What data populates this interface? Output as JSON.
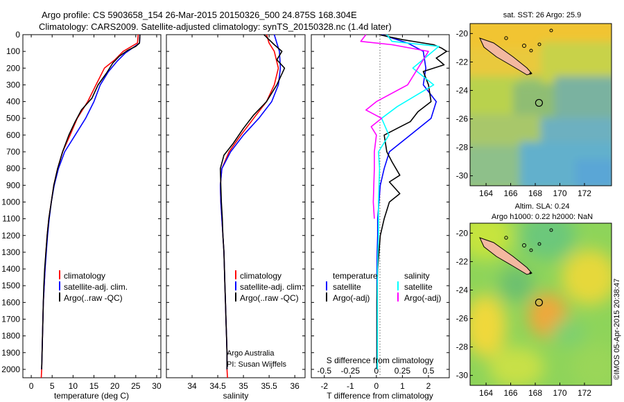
{
  "header": {
    "line1": "Argo profile: CS 5903658_154 26-Mar-2015 20150326_500 24.875S 168.304E",
    "line2": "Climatology: CARS2009. Satellite-adjusted climatology: synTS_20150328.nc (1.4d later)"
  },
  "colors": {
    "climatology": "#ff0000",
    "satellite": "#0000ff",
    "argo": "#000000",
    "sat_salinity": "#00ffff",
    "argo_salinity": "#ff00ff"
  },
  "chart_data": [
    {
      "type": "line",
      "id": "temperature",
      "xlabel": "temperature (deg C)",
      "ylabel": "",
      "xlim": [
        -2,
        31
      ],
      "ylim": [
        2050,
        0
      ],
      "xticks": [
        0,
        5,
        10,
        15,
        20,
        25,
        30
      ],
      "yticks": [
        0,
        100,
        200,
        300,
        400,
        500,
        600,
        700,
        800,
        900,
        1000,
        1100,
        1200,
        1300,
        1400,
        1500,
        1600,
        1700,
        1800,
        1900,
        2000
      ],
      "legend": [
        "climatology",
        "satellite-adj. clim.",
        "Argo(..raw -QC)"
      ],
      "series": [
        {
          "name": "climatology",
          "color": "#ff0000",
          "points": [
            [
              25.6,
              0
            ],
            [
              25.4,
              50
            ],
            [
              24,
              70
            ],
            [
              22,
              100
            ],
            [
              20,
              150
            ],
            [
              17.5,
              200
            ],
            [
              15.5,
              300
            ],
            [
              13.5,
              400
            ],
            [
              11,
              500
            ],
            [
              9.3,
              600
            ],
            [
              7.5,
              700
            ],
            [
              6.3,
              800
            ],
            [
              5.4,
              900
            ],
            [
              4.8,
              1000
            ],
            [
              4.2,
              1100
            ],
            [
              3.8,
              1200
            ],
            [
              3.5,
              1300
            ],
            [
              3.3,
              1400
            ],
            [
              3.1,
              1500
            ],
            [
              2.9,
              1600
            ],
            [
              2.8,
              1700
            ],
            [
              2.7,
              1800
            ],
            [
              2.6,
              1900
            ],
            [
              2.5,
              2000
            ],
            [
              2.4,
              2050
            ]
          ]
        },
        {
          "name": "satellite",
          "color": "#0000ff",
          "points": [
            [
              26,
              0
            ],
            [
              25.9,
              50
            ],
            [
              24.5,
              75
            ],
            [
              22.5,
              110
            ],
            [
              20.5,
              160
            ],
            [
              18.5,
              220
            ],
            [
              16.5,
              300
            ],
            [
              15,
              400
            ],
            [
              13,
              500
            ],
            [
              10.5,
              600
            ],
            [
              8,
              700
            ],
            [
              6.5,
              800
            ],
            [
              5.5,
              900
            ],
            [
              4.8,
              1000
            ],
            [
              4.3,
              1100
            ],
            [
              3.9,
              1200
            ],
            [
              3.6,
              1300
            ],
            [
              3.3,
              1400
            ],
            [
              3.1,
              1500
            ],
            [
              2.9,
              1600
            ],
            [
              2.8,
              1700
            ],
            [
              2.7,
              1800
            ],
            [
              2.6,
              1900
            ],
            [
              2.5,
              2000
            ]
          ]
        },
        {
          "name": "argo",
          "color": "#000000",
          "points": [
            [
              26,
              0
            ],
            [
              25.9,
              50
            ],
            [
              25,
              70
            ],
            [
              23,
              95
            ],
            [
              21,
              130
            ],
            [
              19.5,
              170
            ],
            [
              18,
              230
            ],
            [
              16,
              300
            ],
            [
              14.5,
              380
            ],
            [
              12,
              450
            ],
            [
              10.5,
              520
            ],
            [
              9,
              600
            ],
            [
              7.5,
              700
            ],
            [
              6.3,
              800
            ],
            [
              5.4,
              900
            ],
            [
              4.8,
              1000
            ],
            [
              4.2,
              1100
            ],
            [
              3.8,
              1200
            ],
            [
              3.5,
              1300
            ],
            [
              3.2,
              1400
            ],
            [
              3,
              1500
            ],
            [
              2.9,
              1600
            ],
            [
              2.8,
              1700
            ],
            [
              2.7,
              1800
            ],
            [
              2.6,
              1900
            ],
            [
              2.5,
              2000
            ]
          ]
        }
      ]
    },
    {
      "type": "line",
      "id": "salinity",
      "xlabel": "salinity",
      "xlim": [
        33.5,
        36.2
      ],
      "ylim": [
        2050,
        0
      ],
      "xticks": [
        34,
        34.5,
        35,
        35.5,
        36
      ],
      "legend": [
        "climatology",
        "satellite-adj. clim.",
        "Argo(..raw -QC)"
      ],
      "annotation": [
        "Argo Australia",
        "PI: Susan Wijffels"
      ],
      "series": [
        {
          "name": "climatology",
          "color": "#ff0000",
          "points": [
            [
              35.45,
              0
            ],
            [
              35.5,
              50
            ],
            [
              35.6,
              100
            ],
            [
              35.68,
              200
            ],
            [
              35.6,
              300
            ],
            [
              35.45,
              400
            ],
            [
              35.2,
              500
            ],
            [
              34.95,
              600
            ],
            [
              34.72,
              700
            ],
            [
              34.58,
              800
            ],
            [
              34.55,
              900
            ],
            [
              34.56,
              1000
            ],
            [
              34.58,
              1100
            ],
            [
              34.6,
              1200
            ],
            [
              34.62,
              1300
            ],
            [
              34.63,
              1400
            ],
            [
              34.64,
              1500
            ],
            [
              34.65,
              1600
            ],
            [
              34.66,
              1700
            ],
            [
              34.67,
              1800
            ],
            [
              34.68,
              1900
            ],
            [
              34.68,
              2000
            ],
            [
              34.69,
              2050
            ]
          ]
        },
        {
          "name": "satellite",
          "color": "#0000ff",
          "points": [
            [
              35.6,
              0
            ],
            [
              35.65,
              50
            ],
            [
              35.7,
              100
            ],
            [
              35.72,
              200
            ],
            [
              35.68,
              300
            ],
            [
              35.55,
              400
            ],
            [
              35.3,
              500
            ],
            [
              35.0,
              600
            ],
            [
              34.75,
              700
            ],
            [
              34.58,
              800
            ],
            [
              34.55,
              900
            ],
            [
              34.56,
              1000
            ],
            [
              34.58,
              1100
            ],
            [
              34.6,
              1200
            ],
            [
              34.62,
              1300
            ],
            [
              34.63,
              1400
            ],
            [
              34.64,
              1500
            ],
            [
              34.65,
              1600
            ],
            [
              34.66,
              1700
            ],
            [
              34.67,
              1800
            ],
            [
              34.68,
              1900
            ],
            [
              34.68,
              2000
            ]
          ]
        },
        {
          "name": "argo",
          "color": "#000000",
          "points": [
            [
              35.4,
              0
            ],
            [
              35.5,
              30
            ],
            [
              35.6,
              60
            ],
            [
              35.75,
              100
            ],
            [
              35.65,
              150
            ],
            [
              35.8,
              200
            ],
            [
              35.65,
              300
            ],
            [
              35.45,
              400
            ],
            [
              35.2,
              480
            ],
            [
              35,
              560
            ],
            [
              34.8,
              650
            ],
            [
              34.62,
              720
            ],
            [
              34.55,
              800
            ],
            [
              34.56,
              900
            ],
            [
              34.57,
              1000
            ],
            [
              34.59,
              1100
            ],
            [
              34.6,
              1200
            ],
            [
              34.62,
              1300
            ],
            [
              34.63,
              1400
            ],
            [
              34.64,
              1500
            ],
            [
              34.65,
              1600
            ],
            [
              34.66,
              1700
            ],
            [
              34.67,
              1800
            ],
            [
              34.68,
              1900
            ],
            [
              34.68,
              2000
            ]
          ]
        }
      ]
    },
    {
      "type": "line",
      "id": "difference",
      "xlabel": "T difference from climatology",
      "x2label": "S difference from climatology",
      "xlim": [
        -2.5,
        2.8
      ],
      "x2lim": [
        -0.625,
        0.7
      ],
      "ylim": [
        2050,
        0
      ],
      "xticks": [
        -2,
        -1,
        0,
        1,
        2
      ],
      "x2ticks": [
        -0.5,
        -0.25,
        0,
        0.25,
        0.5
      ],
      "legend_temperature": [
        "temperature",
        "satellite",
        "Argo(-adj)"
      ],
      "legend_salinity": [
        "salinity",
        "satellite",
        "Argo(-adj)"
      ],
      "series": [
        {
          "name": "T satellite",
          "color": "#0000ff",
          "points": [
            [
              0.2,
              0
            ],
            [
              1.2,
              50
            ],
            [
              1.8,
              100
            ],
            [
              1.9,
              200
            ],
            [
              1.8,
              300
            ],
            [
              2.3,
              400
            ],
            [
              2.1,
              500
            ],
            [
              1.3,
              600
            ],
            [
              0.5,
              700
            ],
            [
              0.3,
              800
            ],
            [
              0.15,
              900
            ],
            [
              0.1,
              1000
            ],
            [
              0.05,
              1100
            ],
            [
              0.05,
              1200
            ],
            [
              0.03,
              1300
            ],
            [
              0.02,
              1400
            ],
            [
              0.02,
              1500
            ],
            [
              0.02,
              1600
            ],
            [
              0.02,
              1700
            ],
            [
              0.02,
              1800
            ],
            [
              0.02,
              1900
            ],
            [
              0.02,
              2000
            ]
          ]
        },
        {
          "name": "T argo",
          "color": "#000000",
          "points": [
            [
              0.1,
              0
            ],
            [
              1.0,
              30
            ],
            [
              2.2,
              60
            ],
            [
              2.5,
              80
            ],
            [
              2.7,
              100
            ],
            [
              2.3,
              140
            ],
            [
              2.6,
              180
            ],
            [
              1.8,
              220
            ],
            [
              2.0,
              300
            ],
            [
              2.1,
              400
            ],
            [
              1.6,
              460
            ],
            [
              1.3,
              520
            ],
            [
              0.8,
              560
            ],
            [
              0.3,
              600
            ],
            [
              0.4,
              700
            ],
            [
              0.6,
              760
            ],
            [
              0.9,
              840
            ],
            [
              0.5,
              880
            ],
            [
              0.9,
              950
            ],
            [
              0.5,
              1000
            ],
            [
              0.3,
              1100
            ],
            [
              0.15,
              1200
            ],
            [
              0.1,
              1300
            ],
            [
              0.05,
              1400
            ],
            [
              0.03,
              1500
            ],
            [
              0.02,
              1600
            ],
            [
              0.02,
              1700
            ],
            [
              0.02,
              1800
            ],
            [
              0.02,
              1900
            ],
            [
              0.02,
              2000
            ]
          ]
        },
        {
          "name": "S satellite",
          "color": "#00ffff",
          "points": [
            [
              0.1,
              0
            ],
            [
              0.15,
              40
            ],
            [
              0.6,
              70
            ],
            [
              0.35,
              200
            ],
            [
              0.55,
              300
            ],
            [
              0.2,
              430
            ],
            [
              0.05,
              500
            ],
            [
              0.12,
              600
            ],
            [
              0.02,
              700
            ],
            [
              0.03,
              800
            ],
            [
              0.02,
              1000
            ],
            [
              0.02,
              1200
            ],
            [
              0.01,
              1400
            ],
            [
              0.01,
              1600
            ],
            [
              0.01,
              1800
            ],
            [
              0.01,
              2000
            ]
          ]
        },
        {
          "name": "S argo",
          "color": "#ff00ff",
          "points": [
            [
              -0.1,
              0
            ],
            [
              -0.15,
              40
            ],
            [
              0.15,
              60
            ],
            [
              0.5,
              100
            ],
            [
              0.4,
              200
            ],
            [
              0.3,
              300
            ],
            [
              0.0,
              400
            ],
            [
              -0.1,
              450
            ],
            [
              0.05,
              500
            ],
            [
              -0.05,
              550
            ],
            [
              0.0,
              600
            ],
            [
              -0.02,
              700
            ],
            [
              -0.02,
              800
            ],
            [
              -0.03,
              1000
            ],
            [
              -0.02,
              1100
            ]
          ]
        }
      ]
    },
    {
      "type": "heatmap",
      "id": "sst-map",
      "title": "sat. SST: 26 Argo: 25.9",
      "xticks": [
        164,
        166,
        168,
        170,
        172
      ],
      "yticks": [
        -20,
        -22,
        -24,
        -26,
        -28,
        -30
      ],
      "xlim": [
        162.7,
        174.2
      ],
      "ylim": [
        -30.7,
        -19.3
      ],
      "marker": [
        168.304,
        -24.875
      ]
    },
    {
      "type": "heatmap",
      "id": "sla-map",
      "title": "Altim. SLA: 0.24",
      "subtitle": "Argo h1000: 0.22 h2000: NaN",
      "xticks": [
        164,
        166,
        168,
        170,
        172
      ],
      "yticks": [
        -20,
        -22,
        -24,
        -26,
        -28,
        -30
      ],
      "xlim": [
        162.7,
        174.2
      ],
      "ylim": [
        -30.7,
        -19.3
      ],
      "marker": [
        168.304,
        -24.875
      ]
    }
  ],
  "footer": "©IMOS 05-Apr-2015 20:38:47"
}
